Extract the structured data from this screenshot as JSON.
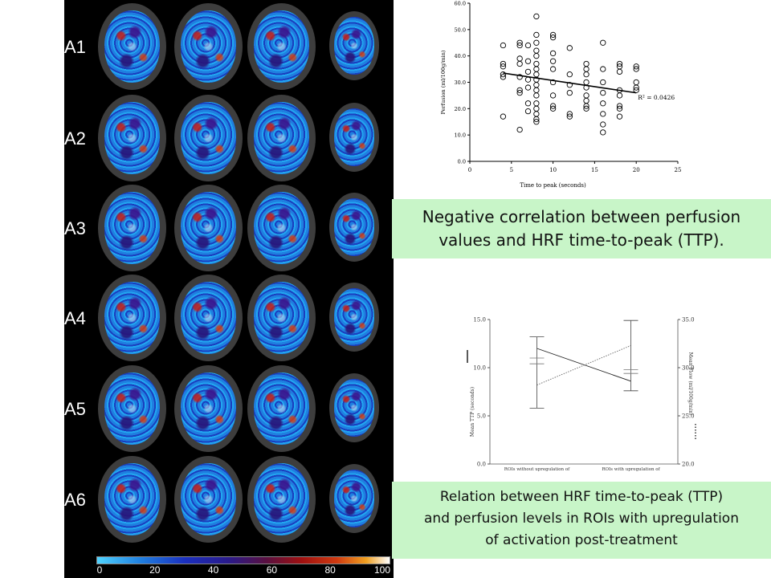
{
  "brain_figure": {
    "row_labels": [
      "A1",
      "A2",
      "A3",
      "A4",
      "A5",
      "A6"
    ],
    "colorbar_ticks": [
      "0",
      "20",
      "40",
      "60",
      "80",
      "100"
    ]
  },
  "chart_data": [
    {
      "type": "scatter",
      "xlabel": "Time to peak (seconds)",
      "ylabel": "Perfusion (ml/100g/min)",
      "xlim": [
        0,
        25
      ],
      "ylim": [
        0,
        60
      ],
      "x_ticks": [
        "0",
        "5",
        "10",
        "15",
        "20",
        "25"
      ],
      "y_ticks": [
        "0.0",
        "10.0",
        "20.0",
        "30.0",
        "40.0",
        "50.0",
        "60.0"
      ],
      "annotation": "R² = 0.0426",
      "trendline": {
        "x": [
          4,
          20
        ],
        "y": [
          33.5,
          26.0
        ]
      },
      "points": [
        {
          "x": 4,
          "y": 44
        },
        {
          "x": 4,
          "y": 37
        },
        {
          "x": 4,
          "y": 36
        },
        {
          "x": 4,
          "y": 33
        },
        {
          "x": 4,
          "y": 32
        },
        {
          "x": 4,
          "y": 17
        },
        {
          "x": 6,
          "y": 45
        },
        {
          "x": 6,
          "y": 44
        },
        {
          "x": 6,
          "y": 39
        },
        {
          "x": 6,
          "y": 37
        },
        {
          "x": 6,
          "y": 32
        },
        {
          "x": 6,
          "y": 27
        },
        {
          "x": 6,
          "y": 26
        },
        {
          "x": 6,
          "y": 12
        },
        {
          "x": 7,
          "y": 44
        },
        {
          "x": 7,
          "y": 38
        },
        {
          "x": 7,
          "y": 34
        },
        {
          "x": 7,
          "y": 31
        },
        {
          "x": 7,
          "y": 28
        },
        {
          "x": 7,
          "y": 22
        },
        {
          "x": 7,
          "y": 19
        },
        {
          "x": 8,
          "y": 55
        },
        {
          "x": 8,
          "y": 48
        },
        {
          "x": 8,
          "y": 45
        },
        {
          "x": 8,
          "y": 42
        },
        {
          "x": 8,
          "y": 40
        },
        {
          "x": 8,
          "y": 37
        },
        {
          "x": 8,
          "y": 35
        },
        {
          "x": 8,
          "y": 33
        },
        {
          "x": 8,
          "y": 31
        },
        {
          "x": 8,
          "y": 29
        },
        {
          "x": 8,
          "y": 27
        },
        {
          "x": 8,
          "y": 25
        },
        {
          "x": 8,
          "y": 22
        },
        {
          "x": 8,
          "y": 20
        },
        {
          "x": 8,
          "y": 18
        },
        {
          "x": 8,
          "y": 16
        },
        {
          "x": 8,
          "y": 15
        },
        {
          "x": 10,
          "y": 48
        },
        {
          "x": 10,
          "y": 47
        },
        {
          "x": 10,
          "y": 41
        },
        {
          "x": 10,
          "y": 38
        },
        {
          "x": 10,
          "y": 35
        },
        {
          "x": 10,
          "y": 30
        },
        {
          "x": 10,
          "y": 25
        },
        {
          "x": 10,
          "y": 21
        },
        {
          "x": 10,
          "y": 20
        },
        {
          "x": 12,
          "y": 43
        },
        {
          "x": 12,
          "y": 33
        },
        {
          "x": 12,
          "y": 29
        },
        {
          "x": 12,
          "y": 26
        },
        {
          "x": 12,
          "y": 18
        },
        {
          "x": 12,
          "y": 17
        },
        {
          "x": 14,
          "y": 37
        },
        {
          "x": 14,
          "y": 35
        },
        {
          "x": 14,
          "y": 33
        },
        {
          "x": 14,
          "y": 30
        },
        {
          "x": 14,
          "y": 28
        },
        {
          "x": 14,
          "y": 25
        },
        {
          "x": 14,
          "y": 23
        },
        {
          "x": 14,
          "y": 21
        },
        {
          "x": 14,
          "y": 20
        },
        {
          "x": 16,
          "y": 45
        },
        {
          "x": 16,
          "y": 35
        },
        {
          "x": 16,
          "y": 30
        },
        {
          "x": 16,
          "y": 26
        },
        {
          "x": 16,
          "y": 22
        },
        {
          "x": 16,
          "y": 18
        },
        {
          "x": 16,
          "y": 14
        },
        {
          "x": 16,
          "y": 11
        },
        {
          "x": 18,
          "y": 37
        },
        {
          "x": 18,
          "y": 36
        },
        {
          "x": 18,
          "y": 34
        },
        {
          "x": 18,
          "y": 27
        },
        {
          "x": 18,
          "y": 25
        },
        {
          "x": 18,
          "y": 21
        },
        {
          "x": 18,
          "y": 20
        },
        {
          "x": 18,
          "y": 17
        },
        {
          "x": 20,
          "y": 36
        },
        {
          "x": 20,
          "y": 35
        },
        {
          "x": 20,
          "y": 30
        },
        {
          "x": 20,
          "y": 28
        },
        {
          "x": 20,
          "y": 27
        }
      ]
    },
    {
      "type": "line",
      "categories": [
        "ROIs without upregulation of activation",
        "ROIs with upregulation of activation"
      ],
      "left_axis": {
        "label": "Mean TTP (seconds)",
        "ylim": [
          0,
          15
        ],
        "ticks": [
          "0.0",
          "5.0",
          "10.0",
          "15.0"
        ]
      },
      "right_axis": {
        "label": "Mean Flow (ml/100g/min)",
        "ylim": [
          20,
          35
        ],
        "ticks": [
          "20.0",
          "25.0",
          "30.0",
          "35.0"
        ]
      },
      "series": [
        {
          "axis": "left",
          "style": "solid",
          "values": [
            12.0,
            8.6
          ],
          "error_low": [
            5.8,
            7.6
          ],
          "error_high": [
            13.2,
            14.9
          ]
        },
        {
          "axis": "right",
          "style": "dotted",
          "values": [
            28.2,
            32.3
          ],
          "error_low": [
            30.4,
            29.4
          ],
          "error_high": [
            31.0,
            29.8
          ]
        }
      ]
    }
  ],
  "captions": {
    "caption1_line1": "Negative correlation between perfusion",
    "caption1_line2": "values and HRF time-to-peak (TTP).",
    "caption2_line1": "Relation between HRF time-to-peak (TTP)",
    "caption2_line2": "and perfusion levels in ROIs with upregulation",
    "caption2_line3": "of activation post-treatment"
  }
}
